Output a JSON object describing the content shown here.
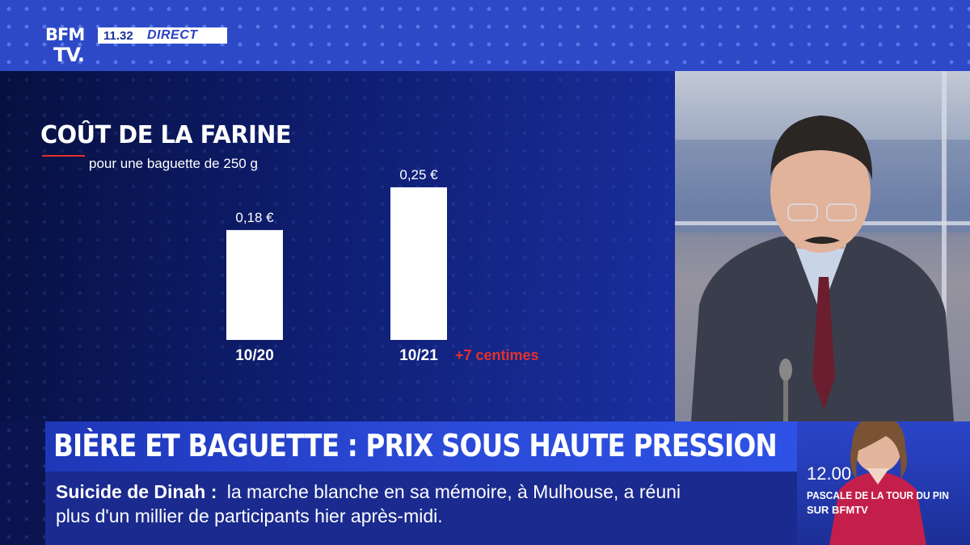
{
  "broadcast": {
    "logo_top": "BFM",
    "logo_bottom": "TV.",
    "time": "11.32",
    "live_label": "DIRECT"
  },
  "headline": "BIÈRE ET BAGUETTE : PRIX SOUS HAUTE PRESSION",
  "ticker": {
    "label": "Suicide de Dinah :",
    "line1": "la marche blanche en sa mémoire, à Mulhouse, a réuni",
    "line2": "plus d'un millier de participants hier après-midi."
  },
  "next_program": {
    "time": "12.00",
    "name": "PASCALE DE LA TOUR DU PIN",
    "channel": "SUR BFMTV"
  },
  "colors": {
    "accent_red": "#e3312d",
    "bar": "#ffffff",
    "brand_blue": "#2a49d6"
  },
  "chart_data": {
    "type": "bar",
    "title": "COÛT DE LA FARINE",
    "subtitle": "pour une baguette de 250 g",
    "categories": [
      "10/20",
      "10/21"
    ],
    "values": [
      0.18,
      0.25
    ],
    "value_labels": [
      "0,18 €",
      "0,25 €"
    ],
    "annotation": "+7 centimes",
    "ylim": [
      0,
      0.25
    ],
    "grid": false
  }
}
